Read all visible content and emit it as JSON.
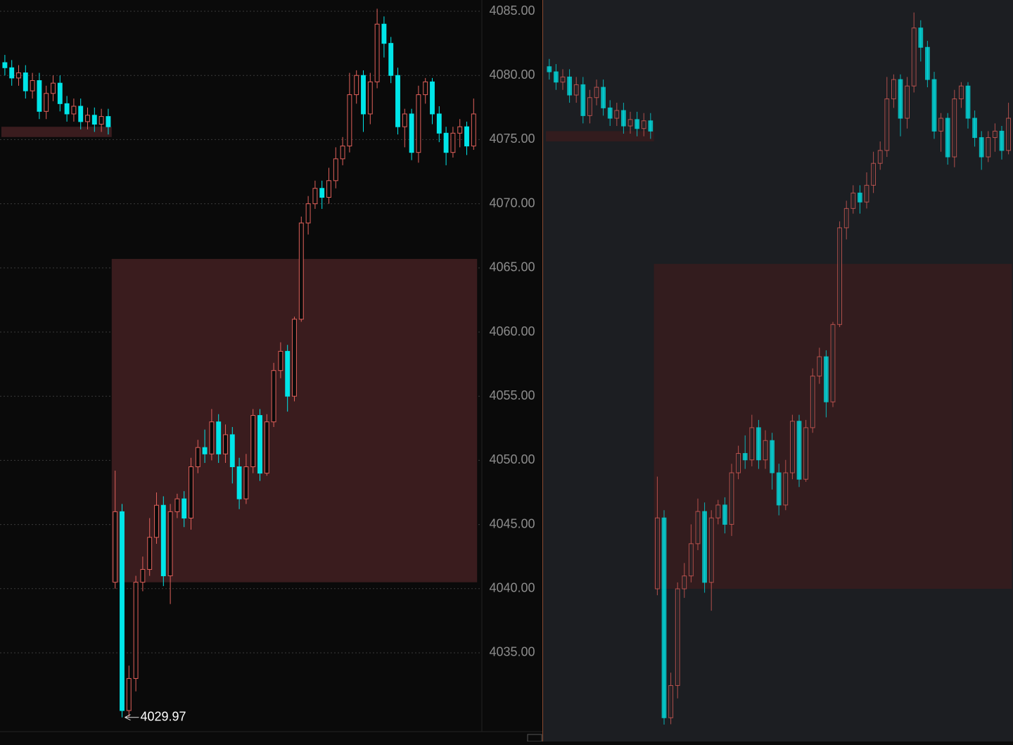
{
  "chart_data": {
    "type": "candlestick",
    "open": [
      4081.0,
      4080.6,
      4079.8,
      4080.2,
      4078.8,
      4079.6,
      4077.2,
      4078.6,
      4079.4,
      4077.8,
      4077.0,
      4077.6,
      4076.4,
      4076.9,
      4076.2,
      4076.8,
      4040.5,
      4046.0,
      4030.5,
      4033.0,
      4040.5,
      4041.5,
      4044.0,
      4046.5,
      4041.0,
      4046.0,
      4047.0,
      4045.5,
      4049.5,
      4051.0,
      4050.5,
      4053.0,
      4050.5,
      4052.0,
      4049.5,
      4047.0,
      4049.5,
      4053.5,
      4049.0,
      4053.0,
      4057.0,
      4058.5,
      4055.0,
      4061.0,
      4068.5,
      4070.0,
      4071.2,
      4070.5,
      4071.8,
      4073.5,
      4074.5,
      4078.5,
      4080.0,
      4077.0,
      4079.5,
      4084.0,
      4082.5,
      4080.0,
      4076.0,
      4077.0,
      4074.0,
      4078.5,
      4079.5,
      4077.0,
      4075.5,
      4074.0,
      4075.5,
      4076.0,
      4074.5
    ],
    "high": [
      4081.6,
      4081.2,
      4080.8,
      4080.8,
      4080.2,
      4080.2,
      4079.2,
      4080.0,
      4080.0,
      4078.4,
      4078.2,
      4078.2,
      4077.5,
      4077.5,
      4077.4,
      4077.4,
      4049.2,
      4046.6,
      4034.0,
      4041.0,
      4042.5,
      4045.5,
      4047.5,
      4047.2,
      4046.6,
      4047.4,
      4047.6,
      4050.2,
      4051.6,
      4052.4,
      4054.0,
      4053.6,
      4052.8,
      4052.6,
      4050.2,
      4050.5,
      4054.0,
      4054.0,
      4053.6,
      4057.6,
      4059.2,
      4059.0,
      4061.2,
      4069.0,
      4070.6,
      4071.8,
      4071.8,
      4072.8,
      4074.4,
      4075.2,
      4080.2,
      4080.4,
      4080.4,
      4080.2,
      4085.2,
      4084.6,
      4083.0,
      4080.6,
      4077.4,
      4077.4,
      4079.2,
      4079.8,
      4079.8,
      4077.6,
      4076.0,
      4076.0,
      4076.6,
      4076.4,
      4078.2
    ],
    "low": [
      4080.0,
      4079.2,
      4079.2,
      4078.2,
      4078.2,
      4076.6,
      4076.6,
      4078.0,
      4077.2,
      4076.4,
      4076.4,
      4075.8,
      4075.8,
      4075.6,
      4075.6,
      4075.4,
      4040.0,
      4029.97,
      4030.0,
      4032.0,
      4039.8,
      4041.0,
      4043.5,
      4040.2,
      4038.8,
      4045.5,
      4044.8,
      4044.6,
      4049.0,
      4049.8,
      4050.0,
      4049.8,
      4049.8,
      4048.2,
      4046.2,
      4046.6,
      4049.0,
      4048.4,
      4048.8,
      4052.6,
      4056.4,
      4053.8,
      4054.6,
      4060.8,
      4067.6,
      4069.6,
      4069.6,
      4070.0,
      4071.2,
      4073.0,
      4074.0,
      4077.8,
      4075.6,
      4076.2,
      4079.0,
      4081.4,
      4079.4,
      4075.4,
      4074.4,
      4073.4,
      4073.2,
      4077.8,
      4076.2,
      4074.8,
      4073.0,
      4073.6,
      4074.4,
      4073.8,
      4074.2
    ],
    "close": [
      4080.6,
      4079.8,
      4080.2,
      4078.8,
      4079.6,
      4077.2,
      4078.6,
      4079.4,
      4077.8,
      4077.0,
      4077.6,
      4076.4,
      4076.9,
      4076.2,
      4076.8,
      4076.0,
      4046.0,
      4030.5,
      4033.0,
      4040.5,
      4041.5,
      4044.0,
      4046.5,
      4041.0,
      4046.0,
      4047.0,
      4045.5,
      4049.5,
      4051.0,
      4050.5,
      4053.0,
      4050.5,
      4052.0,
      4049.5,
      4047.0,
      4049.5,
      4053.5,
      4049.0,
      4053.0,
      4057.0,
      4058.5,
      4055.0,
      4061.0,
      4068.5,
      4070.0,
      4071.2,
      4070.5,
      4071.8,
      4073.5,
      4074.5,
      4078.5,
      4080.0,
      4077.0,
      4079.5,
      4084.0,
      4082.5,
      4080.0,
      4076.0,
      4077.0,
      4074.0,
      4078.5,
      4079.5,
      4077.0,
      4075.5,
      4074.0,
      4075.5,
      4076.0,
      4074.5,
      4077.0
    ],
    "up_color": "#e0605a",
    "down_color": "#00e5e8",
    "zone_color": "#3a1c1e",
    "zones": [
      {
        "from": 0,
        "to": 16,
        "low": 4075.2,
        "high": 4076.0
      },
      {
        "from": 16,
        "to": 69,
        "low": 4040.5,
        "high": 4065.7
      }
    ],
    "yticks": [
      {
        "value": 4085,
        "label": "4085.00"
      },
      {
        "value": 4080,
        "label": "4080.00"
      },
      {
        "value": 4075,
        "label": "4075.00"
      },
      {
        "value": 4070,
        "label": "4070.00"
      },
      {
        "value": 4065,
        "label": "4065.00"
      },
      {
        "value": 4060,
        "label": "4060.00"
      },
      {
        "value": 4055,
        "label": "4055.00"
      },
      {
        "value": 4050,
        "label": "4050.00"
      },
      {
        "value": 4045,
        "label": "4045.00"
      },
      {
        "value": 4040,
        "label": "4040.00"
      },
      {
        "value": 4035,
        "label": "4035.00"
      }
    ],
    "grid": true,
    "panels": [
      {
        "ylim": [
          4028.09,
          4085.88
        ]
      },
      {
        "ylim": [
          4028.66,
          4086.17
        ]
      }
    ]
  }
}
